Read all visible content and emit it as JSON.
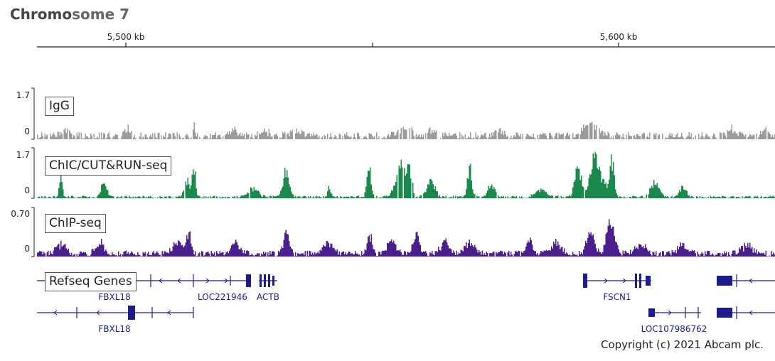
{
  "title": {
    "bold": "Chromo",
    "rest": "some 7"
  },
  "ruler": {
    "ticks": [
      {
        "kb": 5500,
        "label": "5,500 kb"
      },
      {
        "kb": 5600,
        "label": "5,600 kb"
      }
    ]
  },
  "tracks": [
    {
      "id": "igg",
      "label": "IgG",
      "max_label": "1.7",
      "min_label": "0",
      "color": "#9b9b9b",
      "max": 1.7
    },
    {
      "id": "chic",
      "label": "ChIC/CUT&RUN-seq",
      "max_label": "1.7",
      "min_label": "0",
      "color": "#1a8a4c",
      "max": 1.7
    },
    {
      "id": "chip",
      "label": "ChIP-seq",
      "max_label": "0.70",
      "min_label": "0",
      "color": "#4a1e8c",
      "max": 0.7
    }
  ],
  "refseq": {
    "label": "Refseq Genes",
    "color": "#1c1c8c",
    "genes": [
      {
        "name": "FBXL18"
      },
      {
        "name": "LOC221946"
      },
      {
        "name": "ACTB"
      },
      {
        "name": "FSCN1"
      },
      {
        "name": "FBXL18"
      },
      {
        "name": "LOC107986762"
      }
    ]
  },
  "copyright": "Copyright (c) 2021 Abcam plc."
}
